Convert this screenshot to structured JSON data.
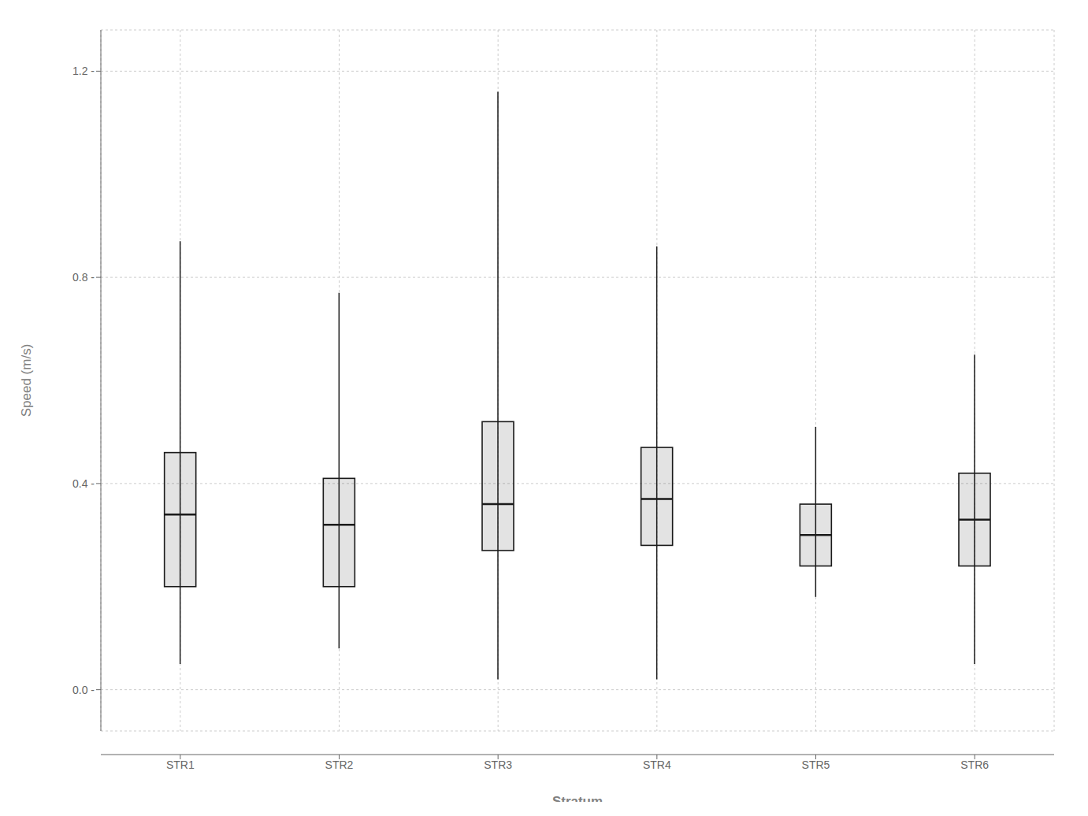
{
  "chart_data": {
    "type": "box",
    "categories": [
      "STR1",
      "STR2",
      "STR3",
      "STR4",
      "STR5",
      "STR6"
    ],
    "boxes": [
      {
        "whislo": 0.05,
        "q1": 0.2,
        "med": 0.34,
        "q3": 0.46,
        "whishi": 0.87
      },
      {
        "whislo": 0.08,
        "q1": 0.2,
        "med": 0.32,
        "q3": 0.41,
        "whishi": 0.77
      },
      {
        "whislo": 0.02,
        "q1": 0.27,
        "med": 0.36,
        "q3": 0.52,
        "whishi": 1.16
      },
      {
        "whislo": 0.02,
        "q1": 0.28,
        "med": 0.37,
        "q3": 0.47,
        "whishi": 0.86
      },
      {
        "whislo": 0.18,
        "q1": 0.24,
        "med": 0.3,
        "q3": 0.36,
        "whishi": 0.51
      },
      {
        "whislo": 0.05,
        "q1": 0.24,
        "med": 0.33,
        "q3": 0.42,
        "whishi": 0.65
      }
    ],
    "xlabel": "Stratum",
    "ylabel": "Speed (m/s)",
    "ylim": [
      -0.08,
      1.28
    ],
    "yticks": [
      {
        "value": 0.0,
        "label": "0.0 -"
      },
      {
        "value": 0.4,
        "label": "0.4 -"
      },
      {
        "value": 0.8,
        "label": "0.8 -"
      },
      {
        "value": 1.2,
        "label": "1.2 -"
      }
    ],
    "color": "#1a1a1a",
    "grid": true
  }
}
